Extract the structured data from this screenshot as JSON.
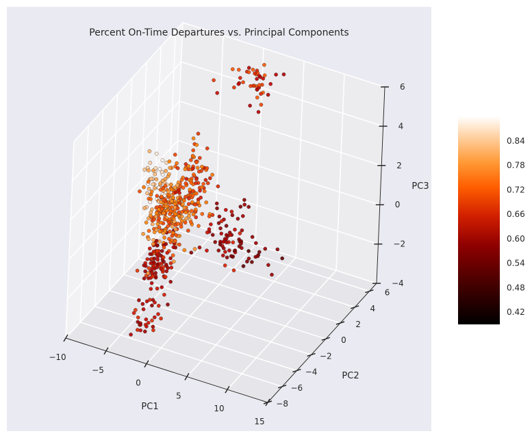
{
  "chart_data": {
    "type": "scatter",
    "projection": "3d",
    "title": "Percent On-Time Departures vs. Principal Components",
    "xlabel": "PC1",
    "ylabel": "PC2",
    "zlabel": "PC3",
    "xlim": [
      -10,
      15
    ],
    "ylim": [
      -8,
      7
    ],
    "zlim": [
      -4,
      6
    ],
    "xticks": [
      -10,
      -5,
      0,
      5,
      10,
      15
    ],
    "yticks": [
      -8,
      -6,
      -4,
      -2,
      0,
      2,
      4,
      6
    ],
    "zticks": [
      -4,
      -2,
      0,
      2,
      4,
      6
    ],
    "xtick_labels": [
      "−10",
      "−5",
      "0",
      "5",
      "10",
      "15"
    ],
    "ytick_labels": [
      "−8",
      "−6",
      "−4",
      "−2",
      "0",
      "2",
      "4",
      "6"
    ],
    "ztick_labels": [
      "−4",
      "−2",
      "0",
      "2",
      "4",
      "6"
    ],
    "grid": true,
    "background": "#eaeaf2",
    "colormap": "gist_heat",
    "colorbar": {
      "range": [
        0.39,
        0.9
      ],
      "ticks": [
        "0.42",
        "0.48",
        "0.54",
        "0.60",
        "0.66",
        "0.72",
        "0.78",
        "0.84"
      ],
      "placement": "right"
    },
    "clusters": [
      {
        "center": [
          -3.5,
          -1.5,
          0.5
        ],
        "spread": [
          1.8,
          1.2,
          1.3
        ],
        "count": 220,
        "value_range": [
          0.7,
          0.82
        ]
      },
      {
        "center": [
          -5.5,
          -1.0,
          1.8
        ],
        "spread": [
          1.0,
          0.8,
          0.9
        ],
        "count": 45,
        "value_range": [
          0.8,
          0.9
        ]
      },
      {
        "center": [
          -1.5,
          -0.5,
          2.0
        ],
        "spread": [
          1.8,
          1.2,
          1.2
        ],
        "count": 110,
        "value_range": [
          0.66,
          0.78
        ]
      },
      {
        "center": [
          -3.5,
          -2.8,
          -1.5
        ],
        "spread": [
          1.2,
          0.9,
          1.0
        ],
        "count": 100,
        "value_range": [
          0.58,
          0.7
        ]
      },
      {
        "center": [
          2.5,
          0.0,
          -0.5
        ],
        "spread": [
          2.2,
          1.2,
          0.9
        ],
        "count": 70,
        "value_range": [
          0.55,
          0.68
        ]
      },
      {
        "center": [
          6.5,
          0.5,
          -1.2
        ],
        "spread": [
          2.0,
          1.0,
          0.6
        ],
        "count": 14,
        "value_range": [
          0.5,
          0.6
        ]
      },
      {
        "center": [
          -2.8,
          -5.0,
          -3.2
        ],
        "spread": [
          0.9,
          0.9,
          0.6
        ],
        "count": 28,
        "value_range": [
          0.58,
          0.7
        ]
      },
      {
        "center": [
          0.5,
          5.0,
          5.0
        ],
        "spread": [
          2.8,
          1.3,
          0.5
        ],
        "count": 42,
        "value_range": [
          0.62,
          0.74
        ]
      }
    ]
  }
}
